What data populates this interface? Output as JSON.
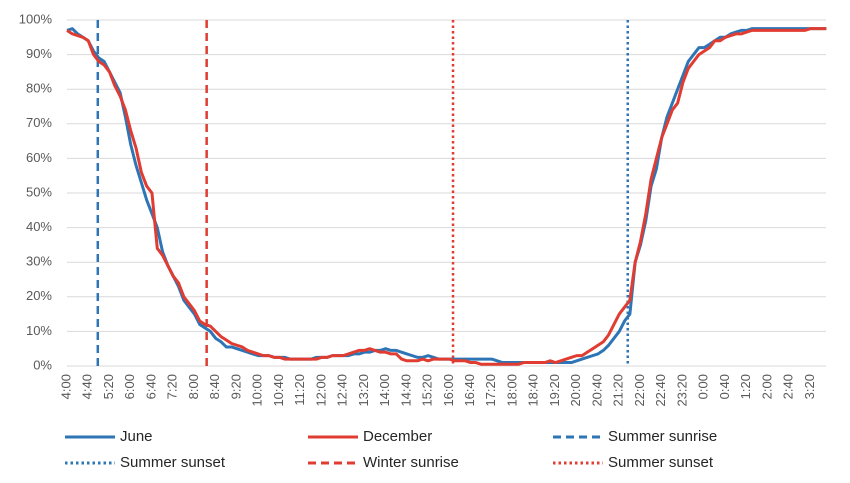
{
  "chart_data": {
    "type": "line",
    "categories": [
      "4:00",
      null,
      null,
      null,
      "4:40",
      null,
      null,
      null,
      "5:20",
      null,
      null,
      null,
      "6:00",
      null,
      null,
      null,
      "6:40",
      null,
      null,
      null,
      "7:20",
      null,
      null,
      null,
      "8:00",
      null,
      null,
      null,
      "8:40",
      null,
      null,
      null,
      "9:20",
      null,
      null,
      null,
      "10:00",
      null,
      null,
      null,
      "10:40",
      null,
      null,
      null,
      "11:20",
      null,
      null,
      null,
      "12:00",
      null,
      null,
      null,
      "12:40",
      null,
      null,
      null,
      "13:20",
      null,
      null,
      null,
      "14:00",
      null,
      null,
      null,
      "14:40",
      null,
      null,
      null,
      "15:20",
      null,
      null,
      null,
      "16:00",
      null,
      null,
      null,
      "16:40",
      null,
      null,
      null,
      "17:20",
      null,
      null,
      null,
      "18:00",
      null,
      null,
      null,
      "18:40",
      null,
      null,
      null,
      "19:20",
      null,
      null,
      null,
      "20:00",
      null,
      null,
      null,
      "20:40",
      null,
      null,
      null,
      "21:20",
      null,
      null,
      null,
      "22:00",
      null,
      null,
      null,
      "22:40",
      null,
      null,
      null,
      "23:20",
      null,
      null,
      null,
      "0:00",
      null,
      null,
      null,
      "0:40",
      null,
      null,
      null,
      "1:20",
      null,
      null,
      null,
      "2:00",
      null,
      null,
      null,
      "2:40",
      null,
      null,
      null,
      "3:20",
      null,
      null,
      null
    ],
    "series": [
      {
        "name": "June",
        "color": "#2e75b6",
        "values": [
          97,
          97.5,
          96,
          95,
          94,
          91,
          89,
          88,
          85,
          82,
          79,
          72,
          64,
          58,
          53,
          48,
          44,
          40,
          33,
          29,
          26,
          23,
          19,
          17,
          15,
          12,
          11,
          10,
          8,
          7,
          5.5,
          5.5,
          5,
          4.5,
          4,
          3.5,
          3,
          3,
          3,
          2.5,
          2.5,
          2.5,
          2,
          2,
          2,
          2,
          2,
          2.5,
          2.5,
          2.5,
          3,
          3,
          3,
          3,
          3.5,
          3.5,
          4,
          4,
          4.5,
          4.5,
          5,
          4.5,
          4.5,
          4,
          3.5,
          3,
          2.5,
          2.5,
          3,
          2.5,
          2,
          2,
          2,
          2,
          2,
          2,
          2,
          2,
          2,
          2,
          2,
          1.5,
          1,
          1,
          1,
          1,
          1,
          1,
          1,
          1,
          1,
          1,
          1,
          1,
          1,
          1,
          1.5,
          2,
          2.5,
          3,
          3.5,
          4.5,
          6,
          8,
          10,
          13,
          15,
          30,
          35,
          42,
          52,
          57,
          66,
          72,
          76,
          80,
          84,
          88,
          90,
          92,
          92,
          93,
          94,
          95,
          95,
          96,
          96.5,
          97,
          97,
          97.5,
          97.5,
          97.5,
          97.5,
          97.5,
          97.5,
          97.5,
          97.5,
          97.5,
          97.5,
          97.5,
          97.5,
          97.5,
          97.5,
          97.5
        ]
      },
      {
        "name": "December",
        "color": "#e03c31",
        "values": [
          97,
          96,
          95.5,
          95,
          94,
          90,
          88,
          87,
          85,
          81,
          78,
          74,
          68,
          63,
          56,
          52,
          50,
          34,
          32,
          29,
          26,
          24,
          20,
          18,
          16,
          13,
          12,
          11.5,
          10,
          8.5,
          7.5,
          6.5,
          6,
          5.5,
          4.5,
          4,
          3.5,
          3,
          3,
          2.5,
          2.5,
          2,
          2,
          2,
          2,
          2,
          2,
          2,
          2.5,
          2.5,
          3,
          3,
          3,
          3.5,
          4,
          4.5,
          4.5,
          5,
          4.5,
          4,
          4,
          3.5,
          3.5,
          2,
          1.5,
          1.5,
          1.5,
          2,
          1.5,
          2,
          2,
          2,
          2,
          1.5,
          1.5,
          1.5,
          1,
          1,
          0.5,
          0.5,
          0.5,
          0.5,
          0.5,
          0.5,
          0.5,
          0.5,
          1,
          1,
          1,
          1,
          1,
          1.5,
          1,
          1.5,
          2,
          2.5,
          3,
          3,
          4,
          5,
          6,
          7,
          9,
          12,
          15,
          17,
          19,
          30,
          36,
          44,
          54,
          60,
          66,
          70,
          74,
          76,
          82,
          86,
          88,
          90,
          91,
          92,
          94,
          94,
          95,
          95.5,
          96,
          96,
          96.5,
          97,
          97,
          97,
          97,
          97,
          97,
          97,
          97,
          97,
          97,
          97,
          97.5,
          97.5,
          97.5,
          97.5
        ]
      }
    ],
    "markers": [
      {
        "name": "Summer sunrise",
        "color": "#2e75b6",
        "style": "dashed",
        "x": 5.8
      },
      {
        "name": "Summer sunset",
        "color": "#2e75b6",
        "style": "dotted",
        "x": 105.6
      },
      {
        "name": "Winter sunrise",
        "color": "#e03c31",
        "style": "dashed",
        "x": 26.3
      },
      {
        "name": "Summer sunset",
        "color": "#e03c31",
        "style": "dotted",
        "x": 72.7
      }
    ],
    "ylim": [
      0,
      100
    ],
    "yticks": [
      {
        "value": 0,
        "label": "0%"
      },
      {
        "value": 10,
        "label": "10%"
      },
      {
        "value": 20,
        "label": "20%"
      },
      {
        "value": 30,
        "label": "30%"
      },
      {
        "value": 40,
        "label": "40%"
      },
      {
        "value": 50,
        "label": "50%"
      },
      {
        "value": 60,
        "label": "60%"
      },
      {
        "value": 70,
        "label": "70%"
      },
      {
        "value": 80,
        "label": "80%"
      },
      {
        "value": 90,
        "label": "90%"
      },
      {
        "value": 100,
        "label": "100%"
      }
    ],
    "grid": true,
    "legend": "bottom"
  }
}
